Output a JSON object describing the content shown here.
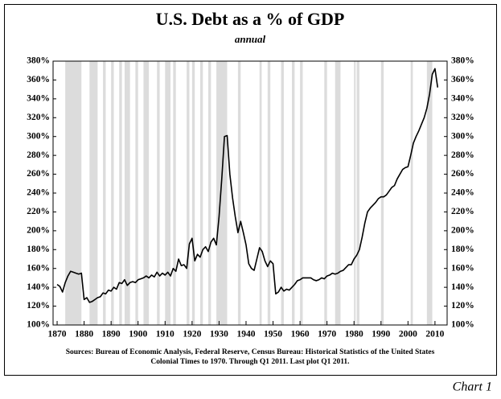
{
  "chart_data": {
    "type": "line",
    "title": "U.S. Debt as a % of GDP",
    "subtitle": "annual",
    "source": [
      "Sources: Bureau of Economic Analysis, Federal Reserve, Census Bureau: Historical Statistics of the United States",
      "Colonial Times to 1970.   Through Q1 2011. Last plot Q1 2011."
    ],
    "label": "Chart 1",
    "color": "#000000",
    "shade_color": "#dcdcdc",
    "recessions": [
      [
        1873,
        1879
      ],
      [
        1882,
        1885
      ],
      [
        1887,
        1888
      ],
      [
        1890,
        1891
      ],
      [
        1893,
        1894
      ],
      [
        1895,
        1897
      ],
      [
        1899,
        1900
      ],
      [
        1902,
        1904
      ],
      [
        1907,
        1908
      ],
      [
        1910,
        1912
      ],
      [
        1913,
        1914
      ],
      [
        1918,
        1919
      ],
      [
        1920,
        1921
      ],
      [
        1923,
        1924
      ],
      [
        1926,
        1927
      ],
      [
        1929,
        1933
      ],
      [
        1937,
        1938
      ],
      [
        1945,
        1945.8
      ],
      [
        1948,
        1949
      ],
      [
        1953,
        1954
      ],
      [
        1957,
        1958
      ],
      [
        1960,
        1961
      ],
      [
        1969,
        1970
      ],
      [
        1973,
        1975
      ],
      [
        1980,
        1980.6
      ],
      [
        1981,
        1982
      ],
      [
        1990,
        1991
      ],
      [
        2001,
        2001.8
      ],
      [
        2007,
        2009
      ]
    ],
    "x": [
      1870,
      1871,
      1872,
      1873,
      1874,
      1875,
      1876,
      1877,
      1878,
      1879,
      1880,
      1881,
      1882,
      1883,
      1884,
      1885,
      1886,
      1887,
      1888,
      1889,
      1890,
      1891,
      1892,
      1893,
      1894,
      1895,
      1896,
      1897,
      1898,
      1899,
      1900,
      1901,
      1902,
      1903,
      1904,
      1905,
      1906,
      1907,
      1908,
      1909,
      1910,
      1911,
      1912,
      1913,
      1914,
      1915,
      1916,
      1917,
      1918,
      1919,
      1920,
      1921,
      1922,
      1923,
      1924,
      1925,
      1926,
      1927,
      1928,
      1929,
      1930,
      1931,
      1932,
      1933,
      1934,
      1935,
      1936,
      1937,
      1938,
      1939,
      1940,
      1941,
      1942,
      1943,
      1944,
      1945,
      1946,
      1947,
      1948,
      1949,
      1950,
      1951,
      1952,
      1953,
      1954,
      1955,
      1956,
      1957,
      1958,
      1959,
      1960,
      1961,
      1962,
      1963,
      1964,
      1965,
      1966,
      1967,
      1968,
      1969,
      1970,
      1971,
      1972,
      1973,
      1974,
      1975,
      1976,
      1977,
      1978,
      1979,
      1980,
      1981,
      1982,
      1983,
      1984,
      1985,
      1986,
      1987,
      1988,
      1989,
      1990,
      1991,
      1992,
      1993,
      1994,
      1995,
      1996,
      1997,
      1998,
      1999,
      2000,
      2001,
      2002,
      2003,
      2004,
      2005,
      2006,
      2007,
      2008,
      2009,
      2010,
      2011
    ],
    "values": [
      143,
      141,
      135,
      145,
      152,
      157,
      156,
      155,
      154,
      155,
      127,
      129,
      124,
      125,
      127,
      129,
      130,
      134,
      133,
      137,
      136,
      140,
      138,
      145,
      144,
      148,
      142,
      145,
      146,
      145,
      148,
      149,
      150,
      152,
      150,
      153,
      151,
      156,
      152,
      155,
      153,
      156,
      152,
      160,
      157,
      170,
      163,
      164,
      160,
      186,
      192,
      168,
      175,
      172,
      180,
      183,
      178,
      188,
      192,
      185,
      215,
      255,
      300,
      301,
      260,
      235,
      215,
      198,
      210,
      198,
      185,
      165,
      160,
      158,
      170,
      182,
      178,
      168,
      162,
      168,
      165,
      133,
      135,
      140,
      136,
      138,
      137,
      140,
      143,
      147,
      148,
      150,
      150,
      150,
      150,
      148,
      147,
      148,
      150,
      149,
      152,
      153,
      155,
      154,
      155,
      157,
      158,
      161,
      164,
      164,
      170,
      174,
      180,
      193,
      208,
      220,
      224,
      227,
      230,
      234,
      236,
      236,
      238,
      242,
      246,
      248,
      255,
      260,
      265,
      267,
      268,
      280,
      293,
      300,
      306,
      313,
      320,
      330,
      345,
      366,
      372,
      352
    ],
    "xlim": [
      1868.5,
      2014.5
    ],
    "xticks": [
      1870,
      1880,
      1890,
      1900,
      1910,
      1920,
      1930,
      1940,
      1950,
      1960,
      1970,
      1980,
      1990,
      2000,
      2010
    ],
    "ylim": [
      100,
      380
    ],
    "yticks": [
      {
        "value": 100,
        "label": "100%"
      },
      {
        "value": 120,
        "label": "120%"
      },
      {
        "value": 140,
        "label": "140%"
      },
      {
        "value": 160,
        "label": "160%"
      },
      {
        "value": 180,
        "label": "180%"
      },
      {
        "value": 200,
        "label": "200%"
      },
      {
        "value": 220,
        "label": "220%"
      },
      {
        "value": 240,
        "label": "240%"
      },
      {
        "value": 260,
        "label": "260%"
      },
      {
        "value": 280,
        "label": "280%"
      },
      {
        "value": 300,
        "label": "300%"
      },
      {
        "value": 320,
        "label": "320%"
      },
      {
        "value": 340,
        "label": "340%"
      },
      {
        "value": 360,
        "label": "360%"
      },
      {
        "value": 380,
        "label": "380%"
      }
    ],
    "y2lim": [
      100,
      380
    ],
    "y2ticks": [
      {
        "value": 100,
        "label": "100%"
      },
      {
        "value": 120,
        "label": "120%"
      },
      {
        "value": 140,
        "label": "140%"
      },
      {
        "value": 160,
        "label": "160%"
      },
      {
        "value": 180,
        "label": "180%"
      },
      {
        "value": 200,
        "label": "200%"
      },
      {
        "value": 220,
        "label": "220%"
      },
      {
        "value": 240,
        "label": "240%"
      },
      {
        "value": 260,
        "label": "260%"
      },
      {
        "value": 280,
        "label": "280%"
      },
      {
        "value": 300,
        "label": "300%"
      },
      {
        "value": 320,
        "label": "320%"
      },
      {
        "value": 340,
        "label": "340%"
      },
      {
        "value": 360,
        "label": "360%"
      },
      {
        "value": 380,
        "label": "380%"
      }
    ]
  }
}
